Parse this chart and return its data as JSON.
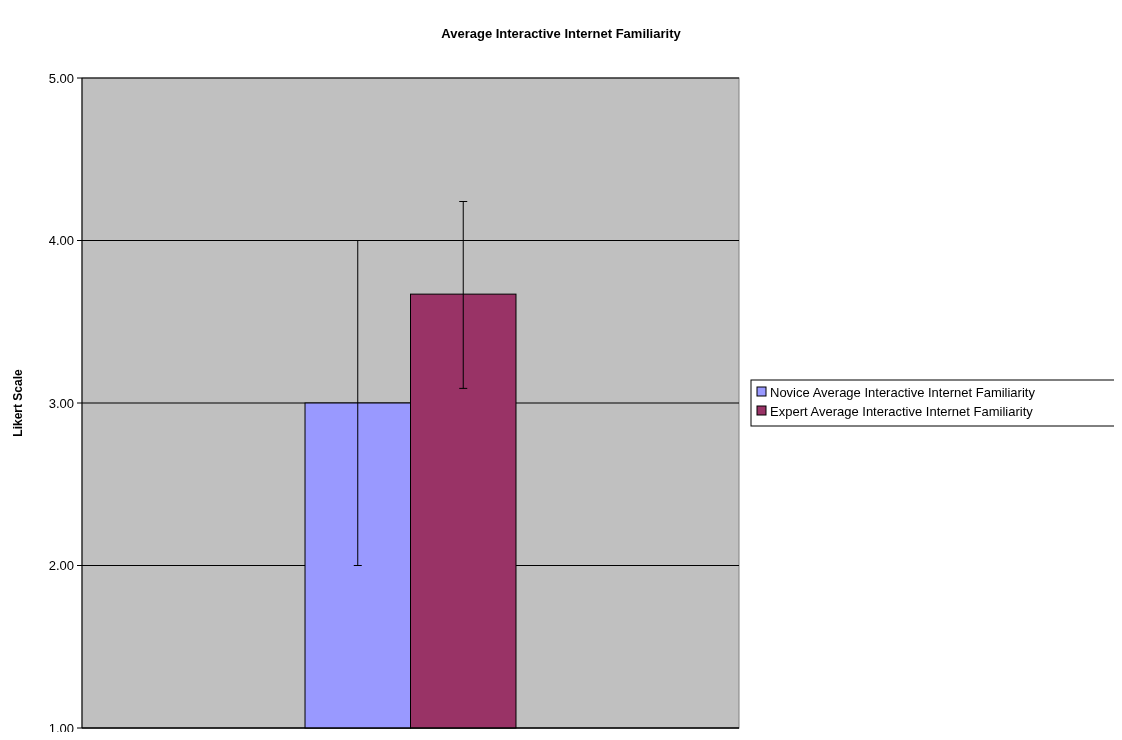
{
  "chart_data": {
    "type": "bar",
    "title": "Average Interactive Internet Familiarity",
    "ylabel": "Likert Scale",
    "categories": [
      null
    ],
    "series": [
      {
        "name": "Novice Average Interactive Internet Familiarity",
        "color": "#9999ff",
        "values": [
          3.0
        ],
        "errors": [
          [
            2.0,
            4.0
          ]
        ]
      },
      {
        "name": "Expert Average Interactive Internet Familiarity",
        "color": "#993366",
        "values": [
          3.67
        ],
        "errors": [
          [
            3.09,
            4.24
          ]
        ]
      }
    ],
    "ylim": [
      1,
      5
    ],
    "yticks": [
      {
        "value": 1,
        "label": "1.00"
      },
      {
        "value": 2,
        "label": "2.00"
      },
      {
        "value": 3,
        "label": "3.00"
      },
      {
        "value": 4,
        "label": "4.00"
      },
      {
        "value": 5,
        "label": "5.00"
      }
    ],
    "grid": "y",
    "legend": "right"
  }
}
